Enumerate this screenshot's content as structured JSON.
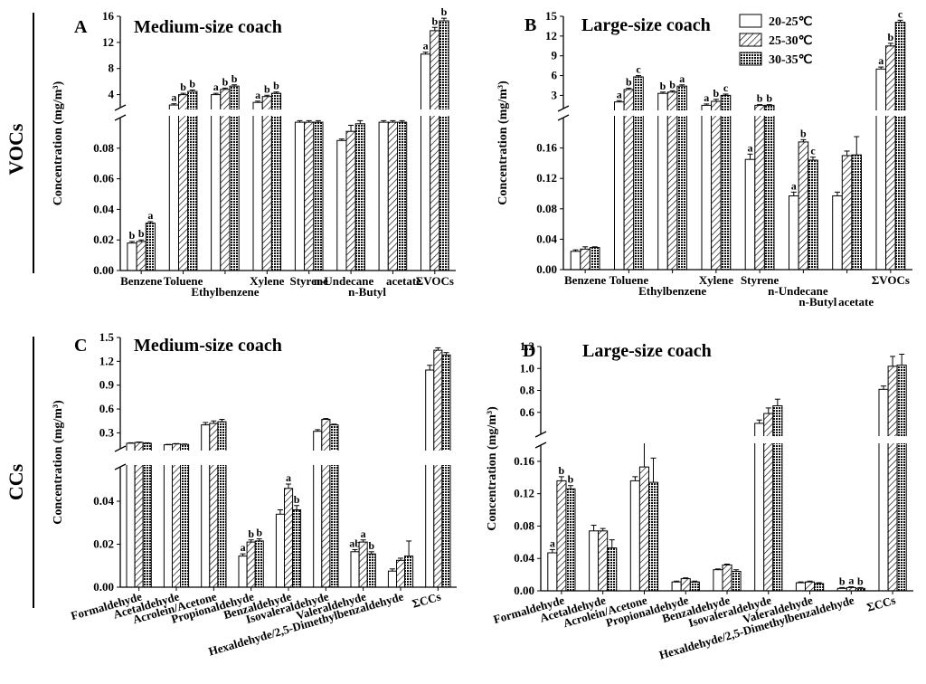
{
  "row_labels": [
    "VOCs",
    "CCs"
  ],
  "legend": {
    "entries": [
      {
        "label": "20-25℃",
        "pattern": "white"
      },
      {
        "label": "25-30℃",
        "pattern": "hatch"
      },
      {
        "label": "30-35℃",
        "pattern": "cross"
      }
    ]
  },
  "chart_data": [
    {
      "type": "bar",
      "panel_letter": "A",
      "title": "Medium-size coach",
      "ylabel": "Concentration (mg/m³)",
      "ylim_lower": [
        0,
        0.1
      ],
      "ylim_upper": [
        2,
        16
      ],
      "yticks_lower": [
        "0.00",
        "0.02",
        "0.04",
        "0.06",
        "0.08"
      ],
      "yticks_upper": [
        "4",
        "8",
        "12",
        "16"
      ],
      "categories": [
        "Benzene",
        "Toluene",
        "Ethylbenzene",
        "Xylene",
        "Styrene",
        "n-Undecane",
        "n-Butyl acetate",
        "ΣVOCs"
      ],
      "category_labels": [
        {
          "text": "Benzene",
          "cat": 0
        },
        {
          "text": "Toluene",
          "cat": 1
        },
        {
          "text": "Ethylbenzene",
          "cat": 2,
          "row": 1
        },
        {
          "text": "Xylene",
          "cat": 3
        },
        {
          "text": "Styrene",
          "cat": 4
        },
        {
          "text": "n-Undecane",
          "cat": 5,
          "dx": -8
        },
        {
          "text": "n-Butyl",
          "cat": 5,
          "row": 1,
          "dx": 18
        },
        {
          "text": "acetate",
          "cat": 6,
          "dx": 12
        },
        {
          "text": "ΣVOCs",
          "cat": 7
        }
      ],
      "series": [
        {
          "name": "20-25℃",
          "values": [
            0.018,
            2.4,
            4.0,
            2.8,
            0.097,
            0.085,
            0.097,
            10.2
          ],
          "errors": [
            0.001,
            0.2,
            0.2,
            0.2,
            0.001,
            0.001,
            0.001,
            0.3
          ],
          "letters": [
            "b",
            "a",
            "a",
            "a",
            "",
            "",
            "",
            "a"
          ]
        },
        {
          "name": "25-30℃",
          "values": [
            0.019,
            4.0,
            4.8,
            3.7,
            0.097,
            0.091,
            0.097,
            13.8
          ],
          "errors": [
            0.001,
            0.2,
            0.2,
            0.2,
            0.001,
            0.004,
            0.001,
            0.5
          ],
          "letters": [
            "b",
            "b",
            "b",
            "b",
            "",
            "",
            "",
            "b"
          ]
        },
        {
          "name": "30-35℃",
          "values": [
            0.031,
            4.5,
            5.3,
            4.2,
            0.097,
            0.096,
            0.097,
            15.3
          ],
          "errors": [
            0.001,
            0.2,
            0.2,
            0.2,
            0.001,
            0.002,
            0.001,
            0.4
          ],
          "letters": [
            "a",
            "b",
            "b",
            "b",
            "",
            "",
            "",
            "b"
          ]
        }
      ]
    },
    {
      "type": "bar",
      "panel_letter": "B",
      "title": "Large-size coach",
      "ylabel": "Concentration (mg/m³)",
      "ylim_lower": [
        0,
        0.2
      ],
      "ylim_upper": [
        1,
        15
      ],
      "yticks_lower": [
        "0.00",
        "0.04",
        "0.08",
        "0.12",
        "0.16"
      ],
      "yticks_upper": [
        "3",
        "6",
        "9",
        "12",
        "15"
      ],
      "categories": [
        "Benzene",
        "Toluene",
        "Ethylbenzene",
        "Xylene",
        "Styrene",
        "n-Undecane",
        "n-Butyl acetate",
        "ΣVOCs"
      ],
      "category_labels": [
        {
          "text": "Benzene",
          "cat": 0
        },
        {
          "text": "Toluene",
          "cat": 1
        },
        {
          "text": "Ethylbenzene",
          "cat": 2,
          "row": 1
        },
        {
          "text": "Xylene",
          "cat": 3
        },
        {
          "text": "Styrene",
          "cat": 4
        },
        {
          "text": "n-Undecane",
          "cat": 5,
          "row": 1,
          "dx": -6
        },
        {
          "text": "n-Butyl",
          "cat": 5,
          "row": 2,
          "dx": 16
        },
        {
          "text": "acetate",
          "cat": 6,
          "row": 2,
          "dx": 10
        },
        {
          "text": "ΣVOCs",
          "cat": 7
        }
      ],
      "series": [
        {
          "name": "20-25℃",
          "values": [
            0.024,
            2.0,
            3.3,
            1.5,
            0.145,
            0.097,
            0.097,
            7.0
          ],
          "errors": [
            0.002,
            0.2,
            0.2,
            0.2,
            0.007,
            0.005,
            0.005,
            0.3
          ],
          "letters": [
            "",
            "a",
            "b",
            "a",
            "a",
            "a",
            "",
            "a"
          ]
        },
        {
          "name": "25-30℃",
          "values": [
            0.027,
            3.9,
            3.5,
            2.1,
            1.5,
            0.168,
            0.15,
            10.5
          ],
          "errors": [
            0.003,
            0.2,
            0.2,
            0.3,
            0.1,
            0.003,
            0.006,
            0.4
          ],
          "letters": [
            "",
            "b",
            "b",
            "b",
            "b",
            "b",
            "",
            "b"
          ]
        },
        {
          "name": "30-35℃",
          "values": [
            0.029,
            5.8,
            4.4,
            3.0,
            1.5,
            0.144,
            0.151,
            14.1
          ],
          "errors": [
            0.001,
            0.2,
            0.2,
            0.2,
            0.1,
            0.004,
            0.024,
            0.3
          ],
          "letters": [
            "",
            "c",
            "a",
            "c",
            "b",
            "c",
            "",
            "c"
          ]
        }
      ]
    },
    {
      "type": "bar",
      "panel_letter": "C",
      "title": "Medium-size coach",
      "ylabel": "Concentration (mg/m³)",
      "ylim_lower": [
        0,
        0.056
      ],
      "ylim_upper": [
        0.1,
        1.5
      ],
      "yticks_lower": [
        "0.00",
        "0.02",
        "0.04"
      ],
      "yticks_upper": [
        "0.3",
        "0.6",
        "0.9",
        "1.2",
        "1.5"
      ],
      "categories": [
        "Formaldehyde",
        "Acetaldehyde",
        "Acrolein/Acetone",
        "Propionaldehyde",
        "Benzaldehyde",
        "Isovaleraldehyde",
        "Valeraldehyde",
        "Hexaldehyde/2,5-Dimethylbenzaldehyde",
        "ΣCCs"
      ],
      "category_labels": [
        {
          "text": "Formaldehyde",
          "cat": 0,
          "rotated": true
        },
        {
          "text": "Acetaldehyde",
          "cat": 1,
          "rotated": true
        },
        {
          "text": "Acrolein/Acetone",
          "cat": 2,
          "rotated": true
        },
        {
          "text": "Propionaldehyde",
          "cat": 3,
          "rotated": true
        },
        {
          "text": "Benzaldehyde",
          "cat": 4,
          "rotated": true
        },
        {
          "text": "Isovaleraldehyde",
          "cat": 5,
          "rotated": true
        },
        {
          "text": "Valeraldehyde",
          "cat": 6,
          "rotated": true
        },
        {
          "text": "Hexaldehyde/2,5-Dimethylbenzaldehyde",
          "cat": 7,
          "rotated": true
        },
        {
          "text": "ΣCCs",
          "cat": 8,
          "rotated": true
        }
      ],
      "series": [
        {
          "name": "20-25℃",
          "values": [
            0.17,
            0.15,
            0.4,
            0.0145,
            0.034,
            0.32,
            0.0165,
            0.0075,
            1.09
          ],
          "errors": [
            0.005,
            0.005,
            0.03,
            0.001,
            0.002,
            0.02,
            0.001,
            0.001,
            0.06
          ],
          "letters": [
            "",
            "",
            "",
            "a",
            "",
            "",
            "ab",
            "",
            ""
          ]
        },
        {
          "name": "25-30℃",
          "values": [
            0.18,
            0.16,
            0.42,
            0.021,
            0.046,
            0.47,
            0.021,
            0.0125,
            1.34
          ],
          "errors": [
            0.005,
            0.005,
            0.03,
            0.001,
            0.002,
            0.01,
            0.001,
            0.001,
            0.03
          ],
          "letters": [
            "",
            "",
            "",
            "b",
            "a",
            "",
            "a",
            "",
            ""
          ]
        },
        {
          "name": "30-35℃",
          "values": [
            0.17,
            0.155,
            0.44,
            0.0215,
            0.036,
            0.4,
            0.0155,
            0.0145,
            1.28
          ],
          "errors": [
            0.005,
            0.005,
            0.03,
            0.001,
            0.002,
            0.01,
            0.001,
            0.007,
            0.03
          ],
          "letters": [
            "",
            "",
            "",
            "b",
            "b",
            "",
            "b",
            "",
            ""
          ]
        }
      ]
    },
    {
      "type": "bar",
      "panel_letter": "D",
      "title": "Large-size coach",
      "ylabel": "Concentration (mg/m³)",
      "ylim_lower": [
        0,
        0.18
      ],
      "ylim_upper": [
        0.4,
        1.2
      ],
      "yticks_lower": [
        "0.00",
        "0.04",
        "0.08",
        "0.12",
        "0.16"
      ],
      "yticks_upper": [
        "0.6",
        "0.8",
        "1.0",
        "1.2"
      ],
      "categories": [
        "Formaldehyde",
        "Acetaldehyde",
        "Acrolein/Acetone",
        "Propionaldehyde",
        "Benzaldehyde",
        "Isovaleraldehyde",
        "Valeraldehyde",
        "Hexaldehyde/2,5-Dimethylbenzaldehyde",
        "ΣCCs"
      ],
      "category_labels": [
        {
          "text": "Formaldehyde",
          "cat": 0,
          "rotated": true
        },
        {
          "text": "Acetaldehyde",
          "cat": 1,
          "rotated": true
        },
        {
          "text": "Acrolein/Acetone",
          "cat": 2,
          "rotated": true
        },
        {
          "text": "Propionaldehyde",
          "cat": 3,
          "rotated": true
        },
        {
          "text": "Benzaldehyde",
          "cat": 4,
          "rotated": true
        },
        {
          "text": "Isovaleraldehyde",
          "cat": 5,
          "rotated": true
        },
        {
          "text": "Valeraldehyde",
          "cat": 6,
          "rotated": true
        },
        {
          "text": "Hexaldehyde/2,5-Dimethylbenzaldehyde",
          "cat": 7,
          "rotated": true
        },
        {
          "text": "ΣCCs",
          "cat": 8,
          "rotated": true
        }
      ],
      "series": [
        {
          "name": "20-25℃",
          "values": [
            0.047,
            0.074,
            0.136,
            0.011,
            0.026,
            0.5,
            0.01,
            0.003,
            0.81
          ],
          "errors": [
            0.004,
            0.007,
            0.005,
            0.001,
            0.001,
            0.03,
            0.001,
            0.001,
            0.03
          ],
          "letters": [
            "a",
            "",
            "",
            "",
            "",
            "",
            "",
            "b",
            ""
          ]
        },
        {
          "name": "25-30℃",
          "values": [
            0.136,
            0.074,
            0.153,
            0.015,
            0.032,
            0.59,
            0.011,
            0.004,
            1.02
          ],
          "errors": [
            0.005,
            0.003,
            0.033,
            0.001,
            0.001,
            0.05,
            0.001,
            0.001,
            0.09
          ],
          "letters": [
            "b",
            "",
            "",
            "",
            "",
            "",
            "",
            "a",
            ""
          ]
        },
        {
          "name": "30-35℃",
          "values": [
            0.126,
            0.053,
            0.134,
            0.011,
            0.024,
            0.66,
            0.009,
            0.003,
            1.03
          ],
          "errors": [
            0.004,
            0.01,
            0.03,
            0.001,
            0.002,
            0.06,
            0.001,
            0.001,
            0.1
          ],
          "letters": [
            "b",
            "",
            "",
            "",
            "",
            "",
            "",
            "b",
            ""
          ]
        }
      ]
    }
  ]
}
